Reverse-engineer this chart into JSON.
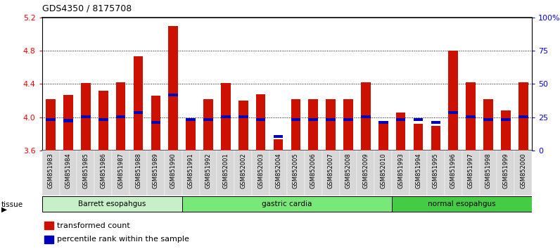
{
  "title": "GDS4350 / 8175708",
  "samples": [
    "GSM851983",
    "GSM851984",
    "GSM851985",
    "GSM851986",
    "GSM851987",
    "GSM851988",
    "GSM851989",
    "GSM851990",
    "GSM851991",
    "GSM851992",
    "GSM852001",
    "GSM852002",
    "GSM852003",
    "GSM852004",
    "GSM852005",
    "GSM852006",
    "GSM852007",
    "GSM852008",
    "GSM852009",
    "GSM852010",
    "GSM851993",
    "GSM851994",
    "GSM851995",
    "GSM851996",
    "GSM851997",
    "GSM851998",
    "GSM851999",
    "GSM852000"
  ],
  "red_values": [
    4.22,
    4.27,
    4.41,
    4.32,
    4.42,
    4.73,
    4.26,
    5.1,
    3.98,
    4.22,
    4.41,
    4.2,
    4.28,
    3.74,
    4.22,
    4.22,
    4.22,
    4.22,
    4.42,
    3.92,
    4.06,
    3.92,
    3.9,
    4.8,
    4.42,
    4.22,
    4.08,
    4.42
  ],
  "blue_values": [
    3.97,
    3.96,
    4.01,
    3.97,
    4.01,
    4.06,
    3.94,
    4.27,
    3.97,
    3.97,
    4.01,
    4.01,
    3.97,
    3.77,
    3.97,
    3.97,
    3.97,
    3.97,
    4.01,
    3.94,
    3.97,
    3.97,
    3.94,
    4.06,
    4.01,
    3.97,
    3.97,
    4.01
  ],
  "groups": [
    {
      "label": "Barrett esopahgus",
      "start": 0,
      "end": 8,
      "color": "#c8f0c8"
    },
    {
      "label": "gastric cardia",
      "start": 8,
      "end": 20,
      "color": "#78e878"
    },
    {
      "label": "normal esopahgus",
      "start": 20,
      "end": 28,
      "color": "#44cc44"
    }
  ],
  "ylim_left": [
    3.6,
    5.2
  ],
  "yticks_left": [
    3.6,
    4.0,
    4.4,
    4.8,
    5.2
  ],
  "ylim_right": [
    0,
    100
  ],
  "yticks_right": [
    0,
    25,
    50,
    75,
    100
  ],
  "yticklabels_right": [
    "0",
    "25",
    "50",
    "75",
    "100%"
  ],
  "bar_width": 0.55,
  "bar_color_red": "#cc1100",
  "bar_color_blue": "#0000bb",
  "background_color": "#ffffff",
  "title_fontsize": 9,
  "tick_fontsize": 7,
  "label_grey": "#d8d8d8",
  "legend_items": [
    {
      "color": "#cc1100",
      "label": "transformed count"
    },
    {
      "color": "#0000bb",
      "label": "percentile rank within the sample"
    }
  ]
}
